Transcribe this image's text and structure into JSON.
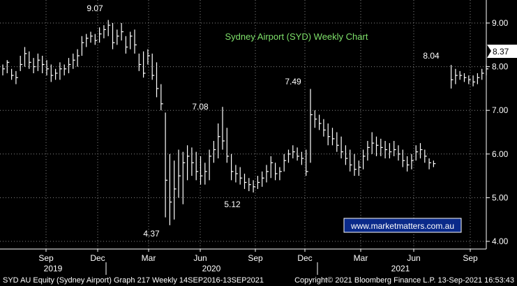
{
  "chart_data": {
    "type": "ohlc",
    "title": "Sydney Airport (SYD) Weekly Chart",
    "ylim": [
      3.8,
      9.4
    ],
    "y_ticks": [
      "9.00",
      "8.00",
      "7.00",
      "6.00",
      "5.00",
      "4.00"
    ],
    "x_ticks": [
      "Sep",
      "Dec",
      "Mar",
      "Jun",
      "Sep",
      "Dec",
      "Mar",
      "Jun",
      "Sep"
    ],
    "x_years": [
      "2019",
      "2020",
      "2021"
    ],
    "last_price": "8.37",
    "annotations": [
      "9.07",
      "4.37",
      "7.08",
      "5.12",
      "7.49",
      "8.04"
    ],
    "watermark_url": "www.marketmatters.com.au",
    "grid": true,
    "series": [
      {
        "points": [
          [
            8.05,
            7.8,
            7.95
          ],
          [
            8.15,
            7.85,
            8.1
          ],
          [
            7.95,
            7.7,
            7.8
          ],
          [
            7.9,
            7.6,
            7.75
          ],
          [
            8.25,
            7.9,
            8.05
          ],
          [
            8.45,
            8.0,
            8.3
          ],
          [
            8.35,
            7.95,
            8.1
          ],
          [
            8.2,
            7.85,
            8.0
          ],
          [
            8.3,
            7.9,
            8.15
          ],
          [
            8.25,
            7.85,
            8.05
          ],
          [
            8.15,
            7.8,
            7.95
          ],
          [
            8.05,
            7.65,
            7.8
          ],
          [
            7.95,
            7.7,
            7.85
          ],
          [
            8.1,
            7.7,
            7.95
          ],
          [
            8.05,
            7.8,
            7.95
          ],
          [
            8.2,
            7.85,
            8.05
          ],
          [
            8.3,
            7.95,
            8.15
          ],
          [
            8.4,
            8.0,
            8.25
          ],
          [
            8.7,
            8.25,
            8.55
          ],
          [
            8.75,
            8.45,
            8.65
          ],
          [
            8.8,
            8.55,
            8.7
          ],
          [
            8.75,
            8.5,
            8.6
          ],
          [
            8.9,
            8.55,
            8.75
          ],
          [
            8.95,
            8.65,
            8.85
          ],
          [
            9.07,
            8.7,
            8.95
          ],
          [
            9.0,
            8.4,
            8.55
          ],
          [
            8.85,
            8.5,
            8.7
          ],
          [
            9.0,
            8.6,
            8.8
          ],
          [
            8.7,
            8.3,
            8.45
          ],
          [
            8.8,
            8.4,
            8.7
          ],
          [
            8.85,
            8.3,
            8.5
          ],
          [
            8.3,
            7.9,
            8.05
          ],
          [
            8.35,
            7.75,
            7.85
          ],
          [
            8.4,
            8.05,
            8.25
          ],
          [
            8.3,
            7.7,
            7.8
          ],
          [
            8.1,
            7.3,
            7.5
          ],
          [
            7.6,
            7.0,
            7.15
          ],
          [
            6.95,
            4.55,
            5.4
          ],
          [
            6.0,
            4.37,
            4.9
          ],
          [
            5.85,
            4.5,
            5.2
          ],
          [
            6.1,
            5.0,
            5.5
          ],
          [
            6.05,
            4.85,
            5.8
          ],
          [
            6.2,
            5.4,
            5.95
          ],
          [
            6.15,
            5.5,
            5.8
          ],
          [
            6.05,
            5.4,
            5.6
          ],
          [
            5.95,
            5.3,
            5.5
          ],
          [
            5.8,
            5.3,
            5.6
          ],
          [
            6.1,
            5.4,
            5.95
          ],
          [
            6.3,
            5.8,
            6.1
          ],
          [
            6.7,
            5.9,
            6.4
          ],
          [
            7.08,
            6.1,
            6.3
          ],
          [
            6.6,
            5.8,
            5.95
          ],
          [
            6.0,
            5.4,
            5.6
          ],
          [
            5.75,
            5.35,
            5.55
          ],
          [
            5.7,
            5.3,
            5.45
          ],
          [
            5.55,
            5.2,
            5.35
          ],
          [
            5.45,
            5.15,
            5.3
          ],
          [
            5.4,
            5.12,
            5.25
          ],
          [
            5.5,
            5.2,
            5.35
          ],
          [
            5.6,
            5.25,
            5.45
          ],
          [
            5.75,
            5.35,
            5.6
          ],
          [
            5.95,
            5.45,
            5.8
          ],
          [
            5.8,
            5.4,
            5.55
          ],
          [
            5.7,
            5.4,
            5.6
          ],
          [
            6.0,
            5.6,
            5.85
          ],
          [
            6.1,
            5.8,
            6.0
          ],
          [
            6.2,
            5.9,
            6.05
          ],
          [
            6.15,
            5.85,
            5.95
          ],
          [
            6.05,
            5.75,
            5.9
          ],
          [
            6.1,
            5.5,
            5.6
          ],
          [
            7.49,
            5.8,
            6.9
          ],
          [
            7.0,
            6.6,
            6.8
          ],
          [
            6.9,
            6.55,
            6.7
          ],
          [
            6.8,
            6.4,
            6.55
          ],
          [
            6.7,
            6.2,
            6.4
          ],
          [
            6.6,
            6.2,
            6.35
          ],
          [
            6.5,
            6.05,
            6.2
          ],
          [
            6.4,
            5.9,
            6.05
          ],
          [
            6.2,
            5.75,
            5.9
          ],
          [
            6.1,
            5.6,
            5.75
          ],
          [
            6.0,
            5.5,
            5.65
          ],
          [
            5.85,
            5.5,
            5.7
          ],
          [
            6.1,
            5.65,
            5.95
          ],
          [
            6.3,
            5.85,
            6.15
          ],
          [
            6.5,
            6.0,
            6.25
          ],
          [
            6.4,
            5.95,
            6.2
          ],
          [
            6.35,
            5.95,
            6.15
          ],
          [
            6.3,
            5.9,
            6.1
          ],
          [
            6.25,
            5.9,
            6.05
          ],
          [
            6.3,
            5.95,
            6.1
          ],
          [
            6.2,
            5.85,
            6.0
          ],
          [
            6.1,
            5.7,
            5.85
          ],
          [
            5.95,
            5.6,
            5.75
          ],
          [
            6.0,
            5.65,
            5.85
          ],
          [
            6.2,
            5.85,
            6.05
          ],
          [
            6.25,
            5.9,
            6.1
          ],
          [
            6.1,
            5.8,
            5.95
          ],
          [
            5.9,
            5.65,
            5.8
          ],
          [
            5.85,
            5.7,
            5.78
          ],
          null,
          null,
          null,
          [
            8.04,
            7.5,
            7.7
          ],
          [
            7.95,
            7.6,
            7.8
          ],
          [
            7.9,
            7.7,
            7.8
          ],
          [
            7.85,
            7.65,
            7.75
          ],
          [
            7.8,
            7.6,
            7.7
          ],
          [
            7.8,
            7.55,
            7.65
          ],
          [
            7.85,
            7.6,
            7.75
          ],
          [
            7.95,
            7.7,
            7.85
          ],
          [
            8.05,
            7.8,
            7.95
          ],
          null,
          null,
          [
            8.4,
            8.35,
            8.37
          ]
        ]
      }
    ]
  },
  "footer": {
    "left": "SYD AU Equity (Sydney Airport) Graph 217  Weekly 14SEP2016-13SEP2021",
    "right": "Copyright© 2021 Bloomberg Finance L.P.    13-Sep-2021 16:53:43"
  }
}
